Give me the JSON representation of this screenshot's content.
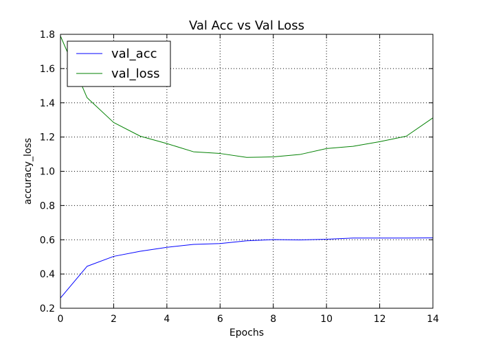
{
  "chart_data": {
    "type": "line",
    "title": "Val Acc vs Val Loss",
    "xlabel": "Epochs",
    "ylabel": "accuracy_loss",
    "xlim": [
      0,
      14
    ],
    "ylim": [
      0.2,
      1.8
    ],
    "xticks": [
      0,
      2,
      4,
      6,
      8,
      10,
      12,
      14
    ],
    "yticks": [
      0.2,
      0.4,
      0.6,
      0.8,
      1.0,
      1.2,
      1.4,
      1.6,
      1.8
    ],
    "xtick_labels": [
      "0",
      "2",
      "4",
      "6",
      "8",
      "10",
      "12",
      "14"
    ],
    "ytick_labels": [
      "0.2",
      "0.4",
      "0.6",
      "0.8",
      "1.0",
      "1.2",
      "1.4",
      "1.6",
      "1.8"
    ],
    "grid": true,
    "legend_position": "top-left",
    "x": [
      0,
      1,
      2,
      3,
      4,
      5,
      6,
      7,
      8,
      9,
      10,
      11,
      12,
      13,
      14
    ],
    "series": [
      {
        "name": "val_acc",
        "color": "#0000ff",
        "values": [
          0.26,
          0.445,
          0.503,
          0.533,
          0.556,
          0.573,
          0.578,
          0.594,
          0.601,
          0.599,
          0.603,
          0.61,
          0.61,
          0.61,
          0.611
        ]
      },
      {
        "name": "val_loss",
        "color": "#008000",
        "values": [
          1.79,
          1.43,
          1.285,
          1.205,
          1.162,
          1.114,
          1.104,
          1.081,
          1.084,
          1.098,
          1.133,
          1.146,
          1.173,
          1.205,
          1.312
        ]
      }
    ]
  }
}
